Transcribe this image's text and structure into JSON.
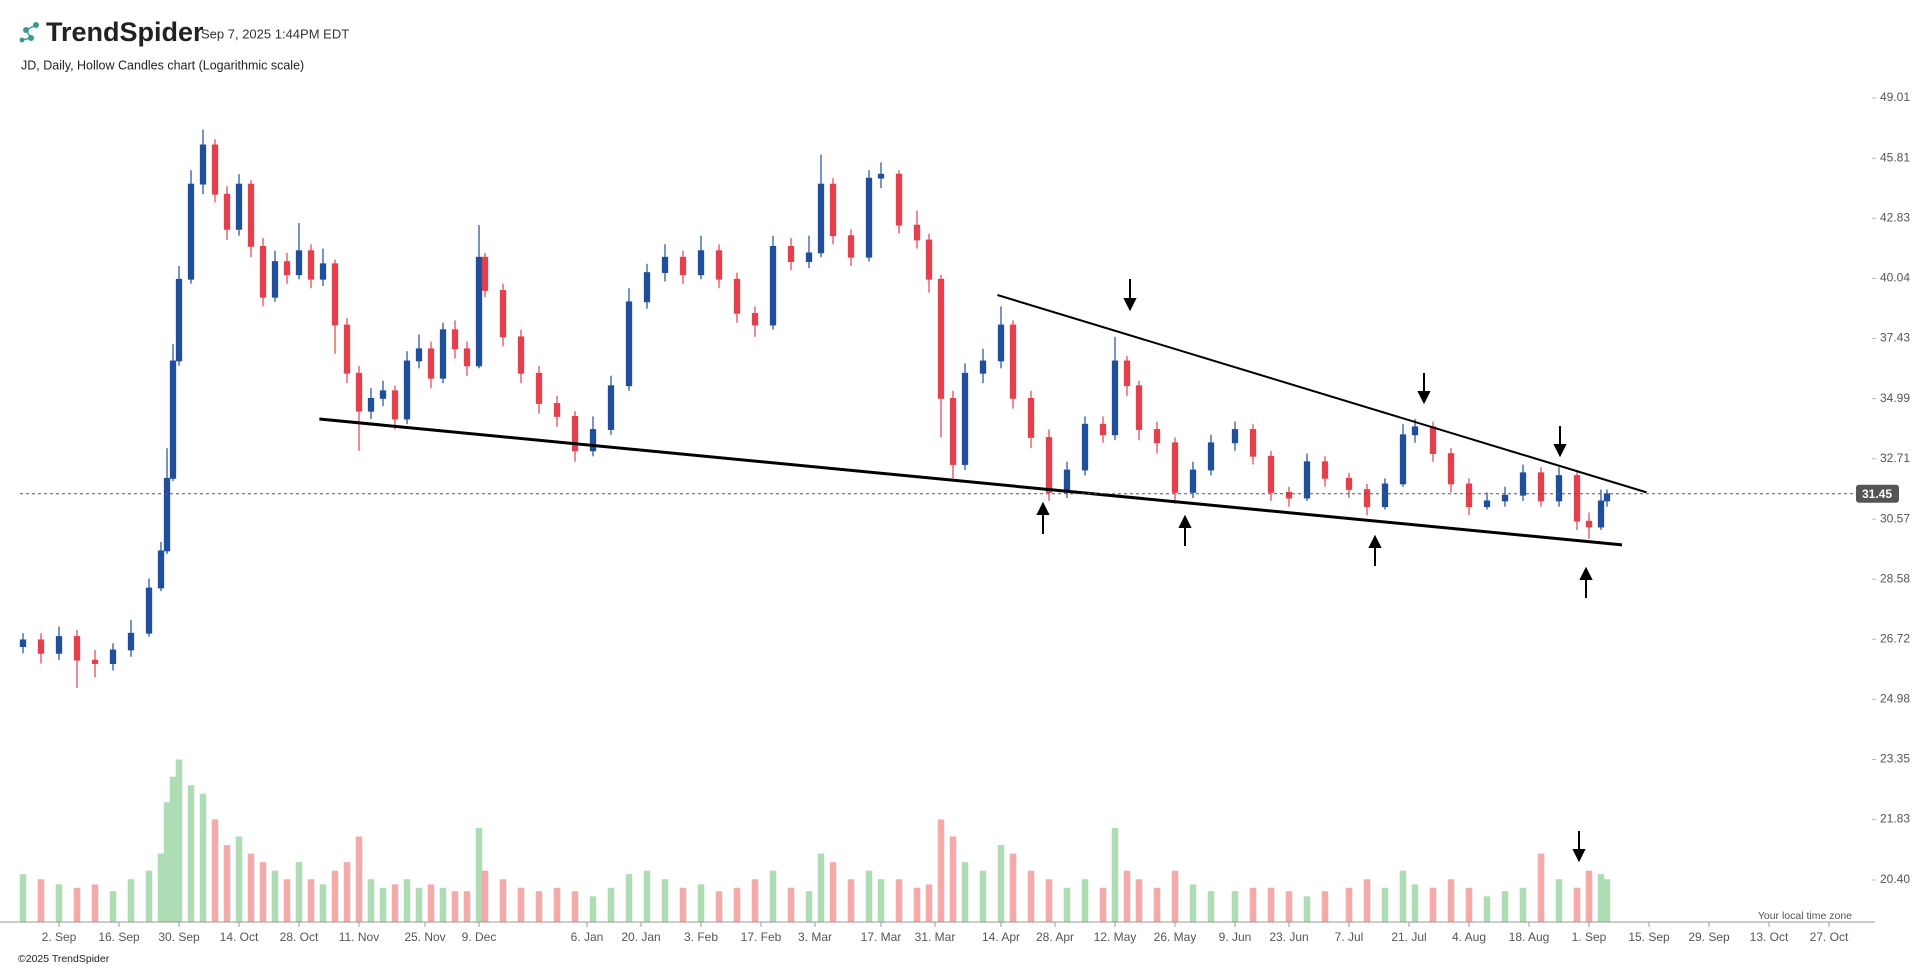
{
  "chart_data": {
    "type": "candlestick",
    "brand": "TrendSpider",
    "timestamp": "Sep 7, 2025 1:44PM EDT",
    "title": "JD, Daily, Hollow Candles chart (Logarithmic scale)",
    "footer": "©2025 TrendSpider",
    "timezone_note": "Your local time zone",
    "log_scale": true,
    "last_price": 31.45,
    "colors": {
      "up": "#1f4e9c",
      "down": "#e3404c",
      "volume_up": "#aedcb5",
      "volume_down": "#f5aaa9",
      "last_price": "#555555",
      "trendline": "#000000"
    },
    "xlim": [
      0,
      305
    ],
    "ylim": [
      {
        "value": 20.4,
        "label": "20.40"
      },
      49.01
    ],
    "yticks": [
      49.01,
      45.81,
      42.83,
      40.04,
      37.43,
      34.99,
      32.71,
      30.57,
      28.58,
      26.72,
      24.98,
      23.35,
      21.83,
      {
        "value": 20.4,
        "label": "20.40"
      }
    ],
    "xticks": [
      {
        "value": 6,
        "label": "2. Sep"
      },
      {
        "value": 16,
        "label": "16. Sep"
      },
      {
        "value": 26,
        "label": "30. Sep"
      },
      {
        "value": 36,
        "label": "14. Oct"
      },
      {
        "value": 46,
        "label": "28. Oct"
      },
      {
        "value": 56,
        "label": "11. Nov"
      },
      {
        "value": 67,
        "label": "25. Nov"
      },
      {
        "value": 76,
        "label": "9. Dec"
      },
      {
        "value": 94,
        "label": "6. Jan"
      },
      {
        "value": 103,
        "label": "20. Jan"
      },
      {
        "value": 113,
        "label": "3. Feb"
      },
      {
        "value": 123,
        "label": "17. Feb"
      },
      {
        "value": 132,
        "label": "3. Mar"
      },
      {
        "value": 143,
        "label": "17. Mar"
      },
      {
        "value": 152,
        "label": "31. Mar"
      },
      {
        "value": 163,
        "label": "14. Apr"
      },
      {
        "value": 172,
        "label": "28. Apr"
      },
      {
        "value": 182,
        "label": "12. May"
      },
      {
        "value": 192,
        "label": "26. May"
      },
      {
        "value": 202,
        "label": "9. Jun"
      },
      {
        "value": 211,
        "label": "23. Jun"
      },
      {
        "value": 221,
        "label": "7. Jul"
      },
      {
        "value": 231,
        "label": "21. Jul"
      },
      {
        "value": 241,
        "label": "4. Aug"
      },
      {
        "value": 251,
        "label": "18. Aug"
      },
      {
        "value": 261,
        "label": "1. Sep"
      },
      {
        "value": 271,
        "label": "15. Sep"
      },
      {
        "value": 281,
        "label": "29. Sep"
      },
      {
        "value": 291,
        "label": "13. Oct"
      },
      {
        "value": 301,
        "label": "27. Oct"
      }
    ],
    "x": [
      0,
      3,
      6,
      9,
      12,
      15,
      18,
      21,
      23,
      24,
      25,
      26,
      28,
      30,
      32,
      34,
      36,
      38,
      40,
      42,
      44,
      46,
      48,
      50,
      52,
      54,
      56,
      58,
      60,
      62,
      64,
      66,
      68,
      70,
      72,
      74,
      76,
      77,
      80,
      83,
      86,
      89,
      92,
      95,
      98,
      101,
      104,
      107,
      110,
      113,
      116,
      119,
      122,
      125,
      128,
      131,
      133,
      135,
      138,
      141,
      143,
      146,
      149,
      151,
      153,
      155,
      157,
      160,
      163,
      165,
      168,
      171,
      174,
      177,
      180,
      182,
      184,
      186,
      189,
      192,
      195,
      198,
      202,
      205,
      208,
      211,
      214,
      217,
      221,
      224,
      227,
      230,
      232,
      235,
      238,
      241,
      244,
      247,
      250,
      253,
      256,
      259,
      261,
      263,
      264
    ],
    "open": [
      26.5,
      26.7,
      26.3,
      26.8,
      26.1,
      26.0,
      26.4,
      26.9,
      28.3,
      29.5,
      32.0,
      36.5,
      40.0,
      44.5,
      46.5,
      44.0,
      42.3,
      44.5,
      41.5,
      39.2,
      40.8,
      40.2,
      41.3,
      40.0,
      40.7,
      38.0,
      36.0,
      34.5,
      35.0,
      35.3,
      34.2,
      36.5,
      37.0,
      35.8,
      37.8,
      37.0,
      36.3,
      41.0,
      39.5,
      37.5,
      36.0,
      34.8,
      34.3,
      33.0,
      33.8,
      35.5,
      39.0,
      40.3,
      41.0,
      40.2,
      41.3,
      40.0,
      38.5,
      38.0,
      41.5,
      40.8,
      41.2,
      44.5,
      42.0,
      41.0,
      44.8,
      45.0,
      42.5,
      41.8,
      40.0,
      35.0,
      32.5,
      36.0,
      36.5,
      38.0,
      35.0,
      33.5,
      31.5,
      32.3,
      34.0,
      33.6,
      36.5,
      35.5,
      33.8,
      33.3,
      31.5,
      32.3,
      33.3,
      33.8,
      32.8,
      31.5,
      31.3,
      32.6,
      32.0,
      31.6,
      31.0,
      31.8,
      33.6,
      33.9,
      32.9,
      31.8,
      31.0,
      31.2,
      31.4,
      32.2,
      31.2,
      32.1,
      30.5,
      30.3,
      31.2
    ],
    "high": [
      26.9,
      26.9,
      27.1,
      27.0,
      26.4,
      26.6,
      27.3,
      28.6,
      29.8,
      33.1,
      37.2,
      40.6,
      45.2,
      47.3,
      46.8,
      44.4,
      45.0,
      44.7,
      41.9,
      41.3,
      41.2,
      42.6,
      41.6,
      41.4,
      40.9,
      38.3,
      36.3,
      35.4,
      35.7,
      35.5,
      36.9,
      37.6,
      37.3,
      38.1,
      38.2,
      37.3,
      42.5,
      41.2,
      39.8,
      37.8,
      36.3,
      35.1,
      34.5,
      34.3,
      35.9,
      39.6,
      40.7,
      41.6,
      41.3,
      42.0,
      41.6,
      40.3,
      38.8,
      42.0,
      41.9,
      42.0,
      46.0,
      44.8,
      42.3,
      45.2,
      45.6,
      45.2,
      43.2,
      42.1,
      40.2,
      35.3,
      36.4,
      37.0,
      38.8,
      38.2,
      35.3,
      33.8,
      32.6,
      34.3,
      34.3,
      37.5,
      36.7,
      35.7,
      34.1,
      33.5,
      32.6,
      33.6,
      34.1,
      34.0,
      33.0,
      31.7,
      32.9,
      32.8,
      32.2,
      31.8,
      32.0,
      34.0,
      34.2,
      34.1,
      33.1,
      32.0,
      31.5,
      31.7,
      32.5,
      32.4,
      32.4,
      32.3,
      30.8,
      31.6,
      31.6
    ],
    "low": [
      26.3,
      26.0,
      26.1,
      25.3,
      25.6,
      25.8,
      26.2,
      26.8,
      28.2,
      29.4,
      31.9,
      36.3,
      39.8,
      44.0,
      43.6,
      41.8,
      42.0,
      41.0,
      38.8,
      39.0,
      39.8,
      40.0,
      39.6,
      39.7,
      36.8,
      35.6,
      33.0,
      34.2,
      34.7,
      33.8,
      34.0,
      36.2,
      35.4,
      35.6,
      36.6,
      35.9,
      36.2,
      39.2,
      37.1,
      35.6,
      34.4,
      33.9,
      32.6,
      32.8,
      33.6,
      35.3,
      38.7,
      39.9,
      39.8,
      40.0,
      39.6,
      38.1,
      37.5,
      37.8,
      40.4,
      40.5,
      41.0,
      41.6,
      40.6,
      40.8,
      44.3,
      42.1,
      41.4,
      39.4,
      33.5,
      32.0,
      32.3,
      35.6,
      36.2,
      34.6,
      33.1,
      31.2,
      31.3,
      32.1,
      33.3,
      33.4,
      35.1,
      33.4,
      32.9,
      31.1,
      31.3,
      32.1,
      33.0,
      32.5,
      31.2,
      31.0,
      31.2,
      31.7,
      31.3,
      30.7,
      30.9,
      31.7,
      33.3,
      32.6,
      31.5,
      30.7,
      30.9,
      31.0,
      31.2,
      31.0,
      31.0,
      30.2,
      29.9,
      30.2,
      31.0
    ],
    "close": [
      26.7,
      26.3,
      26.8,
      26.1,
      26.0,
      26.4,
      26.9,
      28.3,
      29.5,
      32.0,
      36.5,
      40.0,
      44.5,
      46.5,
      44.0,
      42.3,
      44.5,
      41.5,
      39.2,
      40.8,
      40.2,
      41.3,
      40.0,
      40.7,
      38.0,
      36.0,
      34.5,
      35.0,
      35.3,
      34.2,
      36.5,
      37.0,
      35.8,
      37.8,
      37.0,
      36.3,
      41.0,
      39.5,
      37.5,
      36.0,
      34.8,
      34.3,
      33.0,
      33.8,
      35.5,
      39.0,
      40.3,
      41.0,
      40.2,
      41.3,
      40.0,
      38.5,
      38.0,
      41.5,
      40.8,
      41.2,
      44.5,
      42.0,
      41.0,
      44.8,
      45.0,
      42.5,
      41.8,
      40.0,
      35.0,
      32.5,
      36.0,
      36.5,
      38.0,
      35.0,
      33.5,
      31.5,
      32.3,
      34.0,
      33.6,
      36.5,
      35.5,
      33.8,
      33.3,
      31.5,
      32.3,
      33.3,
      33.8,
      32.8,
      31.5,
      31.3,
      32.6,
      32.0,
      31.6,
      31.0,
      31.8,
      33.6,
      33.9,
      32.9,
      31.8,
      31.0,
      31.2,
      31.4,
      32.2,
      31.2,
      32.1,
      30.5,
      30.3,
      31.2,
      31.45
    ],
    "vlim": [
      0,
      100
    ],
    "volume": [
      28,
      25,
      22,
      20,
      22,
      18,
      25,
      30,
      40,
      70,
      85,
      95,
      80,
      75,
      60,
      45,
      50,
      40,
      35,
      30,
      25,
      35,
      25,
      22,
      30,
      35,
      50,
      25,
      20,
      22,
      25,
      20,
      22,
      20,
      18,
      18,
      55,
      30,
      25,
      20,
      18,
      20,
      18,
      15,
      20,
      28,
      30,
      25,
      20,
      22,
      18,
      20,
      25,
      30,
      20,
      18,
      40,
      35,
      25,
      30,
      25,
      25,
      20,
      22,
      60,
      50,
      35,
      30,
      45,
      40,
      30,
      25,
      20,
      25,
      20,
      55,
      30,
      25,
      20,
      30,
      22,
      18,
      18,
      20,
      20,
      18,
      15,
      18,
      20,
      25,
      20,
      30,
      22,
      20,
      25,
      20,
      15,
      18,
      20,
      40,
      25,
      20,
      30,
      28,
      25
    ],
    "trendlines": [
      {
        "x": [
          49.4,
          266.5
        ],
        "y": [
          34.2,
          29.7
        ]
      },
      {
        "x": [
          162.4,
          270.6
        ],
        "y": [
          39.3,
          31.5
        ]
      }
    ]
  }
}
